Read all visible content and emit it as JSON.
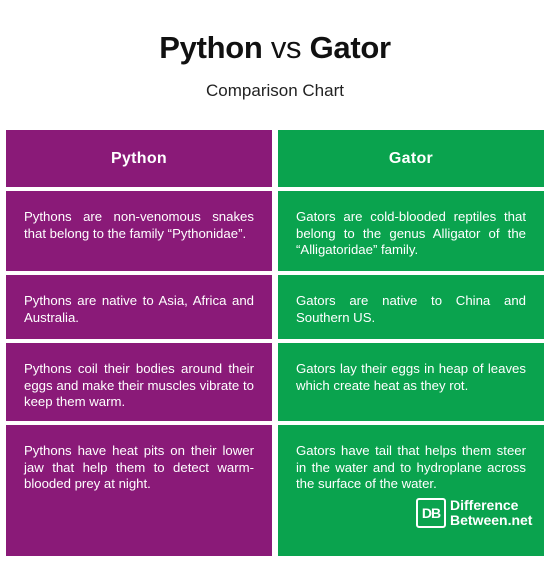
{
  "header": {
    "title_left": "Python",
    "title_vs": "vs",
    "title_right": "Gator",
    "subtitle": "Comparison Chart"
  },
  "columns": {
    "left": {
      "heading": "Python",
      "color": "#8a1a78",
      "rows": [
        "Pythons are non-venomous snakes that belong to the family “Pythonidae”.",
        "Pythons are native to Asia, Africa and Australia.",
        "Pythons coil their bodies around their eggs and make their muscles vibrate to keep them warm.",
        "Pythons have heat pits on their lower jaw that help them to detect warm-blooded prey at night."
      ]
    },
    "right": {
      "heading": "Gator",
      "color": "#0aa34e",
      "rows": [
        "Gators are cold-blooded reptiles that belong to the genus Alligator of the “Alligatoridae” family.",
        "Gators are native to China and Southern US.",
        "Gators lay their eggs in heap of leaves which create heat as they rot.",
        "Gators have tail that helps them steer in the water and to hydroplane across the surface of the water."
      ]
    }
  },
  "logo": {
    "mark": "DB",
    "line1": "Difference",
    "line2": "Between.net"
  }
}
